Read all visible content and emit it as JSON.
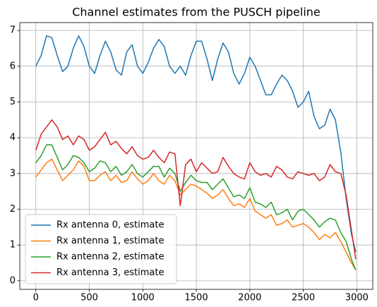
{
  "chart_data": {
    "type": "line",
    "title": "Channel estimates from the PUSCH pipeline",
    "x": [
      0,
      50,
      100,
      150,
      200,
      250,
      300,
      350,
      400,
      450,
      500,
      550,
      600,
      650,
      700,
      750,
      800,
      850,
      900,
      950,
      1000,
      1050,
      1100,
      1150,
      1200,
      1250,
      1300,
      1350,
      1400,
      1450,
      1500,
      1550,
      1600,
      1650,
      1700,
      1750,
      1800,
      1850,
      1900,
      1950,
      2000,
      2050,
      2100,
      2150,
      2200,
      2250,
      2300,
      2350,
      2400,
      2450,
      2500,
      2550,
      2600,
      2650,
      2700,
      2750,
      2800,
      2850,
      2900,
      2950,
      2990
    ],
    "series": [
      {
        "name": "Rx antenna 0, estimate",
        "color": "#1f77b4",
        "values": [
          6.0,
          6.3,
          6.85,
          6.8,
          6.3,
          5.85,
          6.0,
          6.5,
          6.85,
          6.55,
          6.0,
          5.8,
          6.3,
          6.7,
          6.4,
          5.9,
          5.75,
          6.4,
          6.6,
          6.0,
          5.8,
          6.1,
          6.5,
          6.75,
          6.55,
          6.0,
          5.8,
          6.0,
          5.75,
          6.3,
          6.7,
          6.7,
          6.2,
          5.6,
          6.2,
          6.65,
          6.4,
          5.8,
          5.5,
          5.8,
          6.25,
          6.0,
          5.6,
          5.2,
          5.2,
          5.5,
          5.75,
          5.6,
          5.3,
          4.85,
          5.0,
          5.3,
          4.6,
          4.25,
          4.35,
          4.8,
          4.5,
          3.6,
          2.3,
          1.3,
          0.8
        ]
      },
      {
        "name": "Rx antenna 1, estimate",
        "color": "#ff7f0e",
        "values": [
          2.9,
          3.1,
          3.3,
          3.4,
          3.1,
          2.8,
          2.95,
          3.1,
          3.35,
          3.2,
          2.8,
          2.8,
          2.95,
          3.05,
          2.8,
          2.95,
          2.75,
          2.8,
          3.05,
          2.85,
          2.7,
          2.8,
          3.0,
          2.8,
          2.7,
          2.95,
          2.8,
          2.4,
          2.55,
          2.7,
          2.65,
          2.55,
          2.45,
          2.3,
          2.4,
          2.55,
          2.3,
          2.1,
          2.15,
          2.05,
          2.3,
          1.95,
          1.85,
          1.75,
          1.85,
          1.55,
          1.6,
          1.7,
          1.5,
          1.55,
          1.6,
          1.5,
          1.35,
          1.15,
          1.3,
          1.2,
          1.35,
          1.1,
          0.8,
          0.5,
          0.3
        ]
      },
      {
        "name": "Rx antenna 2, estimate",
        "color": "#2ca02c",
        "values": [
          3.3,
          3.5,
          3.8,
          3.8,
          3.45,
          3.1,
          3.25,
          3.5,
          3.45,
          3.3,
          3.05,
          3.15,
          3.35,
          3.3,
          3.05,
          3.2,
          2.95,
          3.05,
          3.25,
          3.0,
          2.9,
          3.05,
          3.2,
          3.2,
          2.9,
          3.15,
          3.0,
          2.5,
          2.75,
          2.95,
          2.8,
          2.75,
          2.75,
          2.55,
          2.7,
          2.85,
          2.6,
          2.35,
          2.4,
          2.3,
          2.6,
          2.2,
          2.15,
          2.05,
          2.2,
          1.85,
          1.9,
          2.0,
          1.7,
          1.95,
          2.0,
          1.85,
          1.7,
          1.5,
          1.65,
          1.75,
          1.7,
          1.35,
          1.1,
          0.6,
          0.3
        ]
      },
      {
        "name": "Rx antenna 3, estimate",
        "color": "#d62728",
        "values": [
          3.65,
          4.1,
          4.3,
          4.5,
          4.3,
          3.95,
          4.05,
          3.8,
          4.05,
          3.95,
          3.65,
          3.75,
          3.95,
          4.15,
          3.8,
          3.9,
          3.7,
          3.55,
          3.75,
          3.5,
          3.4,
          3.45,
          3.65,
          3.45,
          3.3,
          3.6,
          3.55,
          2.1,
          3.25,
          3.4,
          3.05,
          3.3,
          3.15,
          3.0,
          3.05,
          3.45,
          3.2,
          3.0,
          2.9,
          2.85,
          3.3,
          3.05,
          2.95,
          3.0,
          2.9,
          3.2,
          3.1,
          2.9,
          2.85,
          3.05,
          3.0,
          2.95,
          3.0,
          2.8,
          2.9,
          3.25,
          3.05,
          3.0,
          2.4,
          1.4,
          0.6
        ]
      }
    ],
    "xlim": [
      -150,
      3149
    ],
    "ylim": [
      -0.24,
      7.22
    ],
    "xticks": [
      0,
      500,
      1000,
      1500,
      2000,
      2500,
      3000
    ],
    "yticks": [
      0,
      1,
      2,
      3,
      4,
      5,
      6,
      7
    ],
    "grid": true,
    "legend": "lower left"
  }
}
